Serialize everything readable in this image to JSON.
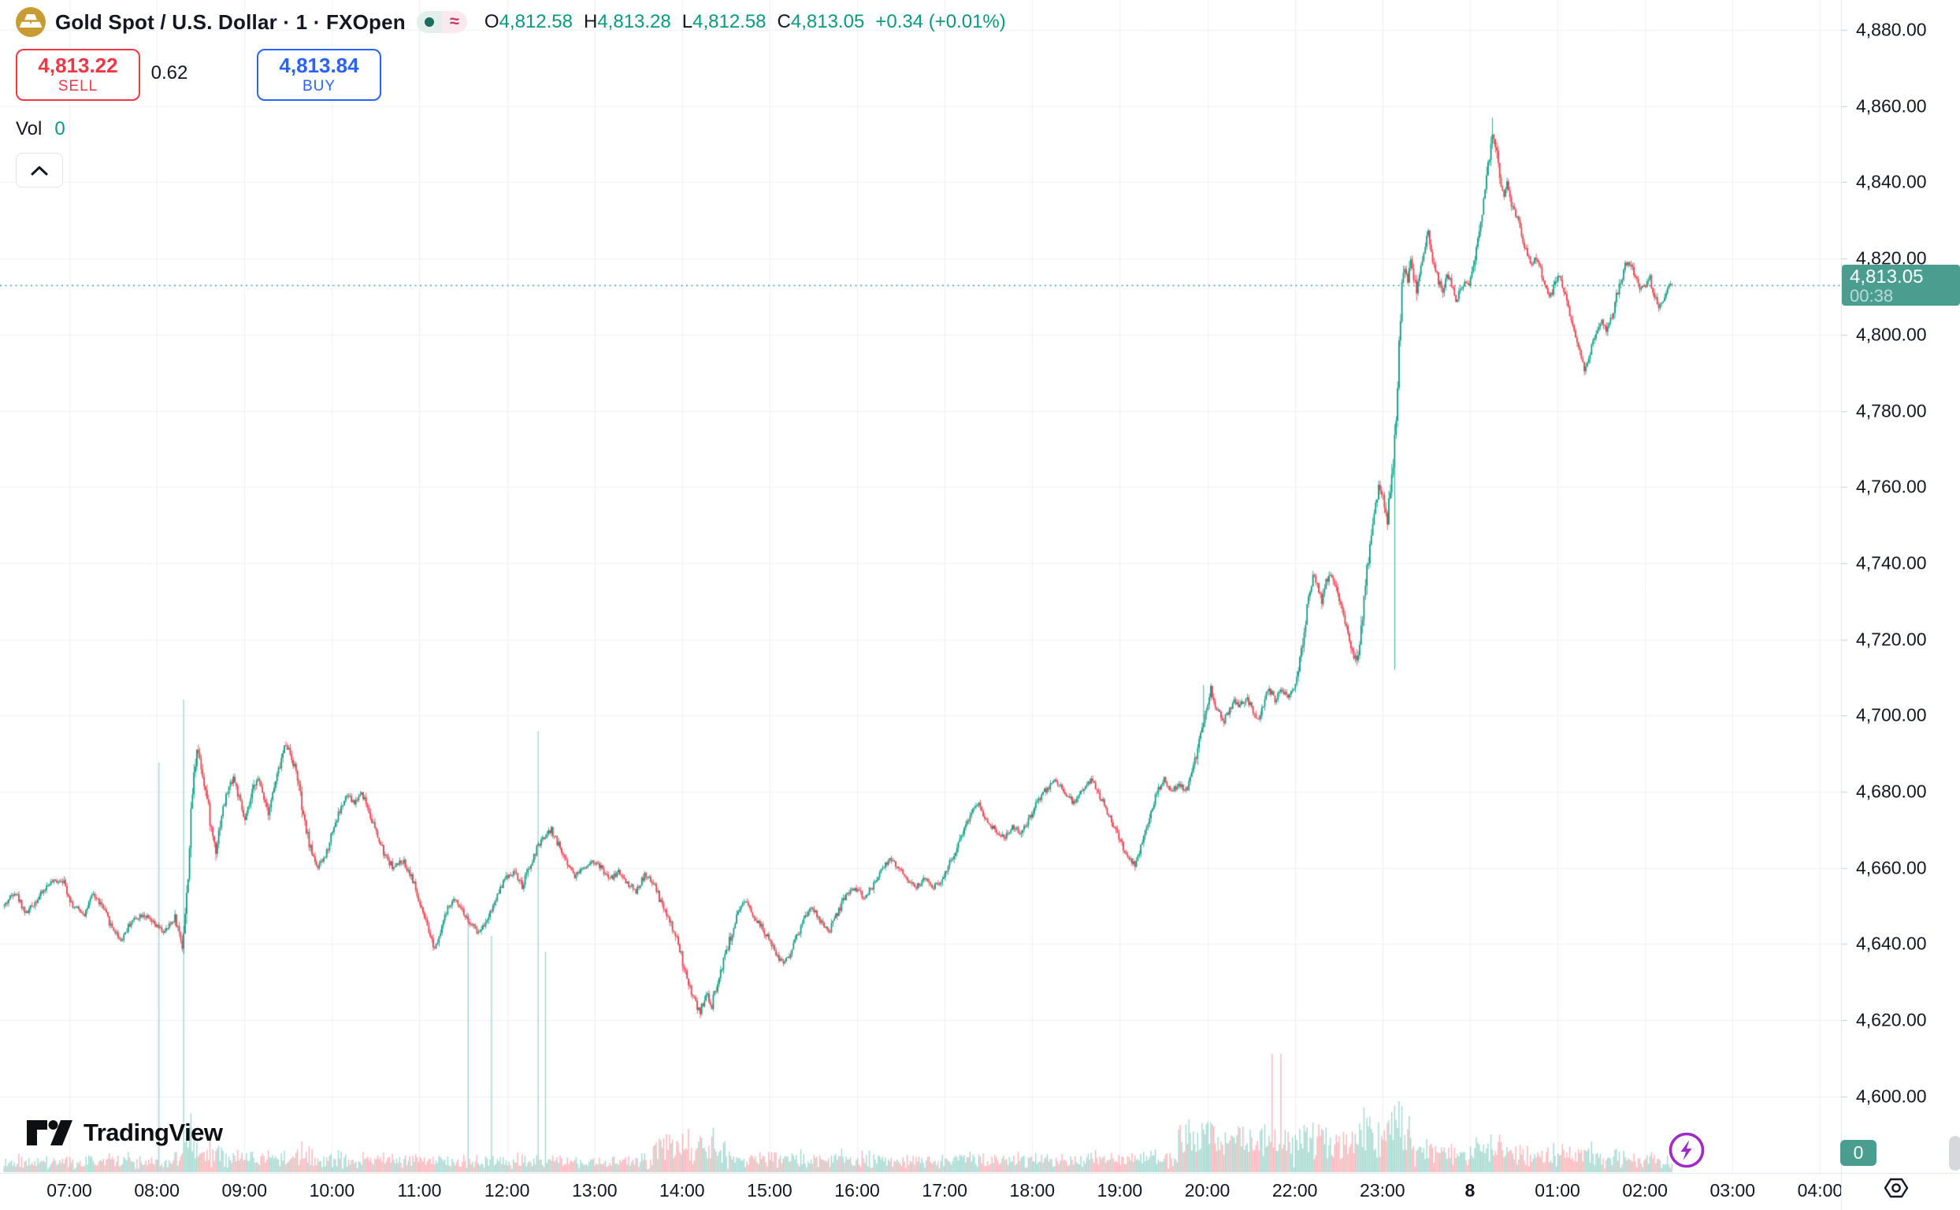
{
  "header": {
    "symbol_title": "Gold Spot / U.S. Dollar · 1 · FXOpen",
    "ohlc": {
      "o_label": "O",
      "o": "4,812.58",
      "h_label": "H",
      "h": "4,813.28",
      "l_label": "L",
      "l": "4,812.58",
      "c_label": "C",
      "c": "4,813.05",
      "change": "+0.34 (+0.01%)"
    },
    "sell_button": {
      "price": "4,813.22",
      "label": "SELL"
    },
    "spread": "0.62",
    "buy_button": {
      "price": "4,813.84",
      "label": "BUY"
    },
    "vol_label": "Vol",
    "vol_value": "0"
  },
  "price_label": {
    "value": "4,813.05",
    "countdown": "00:38"
  },
  "volume_badge": "0",
  "footer": {
    "logo_text": "TradingView"
  },
  "chart_data": {
    "type": "candlestick",
    "title": "Gold Spot / U.S. Dollar",
    "interval_minutes": 1,
    "provider": "FXOpen",
    "last": {
      "open": 4812.58,
      "high": 4813.28,
      "low": 4812.58,
      "close": 4813.05,
      "change": 0.34,
      "change_pct": 0.01
    },
    "price_axis": {
      "min": 4600,
      "max": 4880,
      "tick_step": 20,
      "tick_labels": [
        "4,880.00",
        "4,860.00",
        "4,840.00",
        "4,820.00",
        "4,800.00",
        "4,780.00",
        "4,760.00",
        "4,740.00",
        "4,720.00",
        "4,700.00",
        "4,680.00",
        "4,660.00",
        "4,640.00",
        "4,620.00",
        "4,600.00"
      ]
    },
    "time_axis": {
      "missing_hour": "21:00",
      "ticks": [
        {
          "t": "07:00",
          "label": "07:00"
        },
        {
          "t": "08:00",
          "label": "08:00"
        },
        {
          "t": "09:00",
          "label": "09:00"
        },
        {
          "t": "10:00",
          "label": "10:00"
        },
        {
          "t": "11:00",
          "label": "11:00"
        },
        {
          "t": "12:00",
          "label": "12:00"
        },
        {
          "t": "13:00",
          "label": "13:00"
        },
        {
          "t": "14:00",
          "label": "14:00"
        },
        {
          "t": "15:00",
          "label": "15:00"
        },
        {
          "t": "16:00",
          "label": "16:00"
        },
        {
          "t": "17:00",
          "label": "17:00"
        },
        {
          "t": "18:00",
          "label": "18:00"
        },
        {
          "t": "19:00",
          "label": "19:00"
        },
        {
          "t": "20:00",
          "label": "20:00"
        },
        {
          "t": "22:00",
          "label": "22:00"
        },
        {
          "t": "23:00",
          "label": "23:00"
        },
        {
          "t": "00:00",
          "label": "8",
          "bold": true
        },
        {
          "t": "01:00",
          "label": "01:00"
        },
        {
          "t": "02:00",
          "label": "02:00"
        },
        {
          "t": "03:00",
          "label": "03:00"
        },
        {
          "t": "04:00",
          "label": "04:00"
        }
      ]
    },
    "session": {
      "start": "06:15",
      "end": "02:18"
    },
    "price_line": 4813.05,
    "price_path": [
      [
        "06:15",
        4650
      ],
      [
        "06:22",
        4654
      ],
      [
        "06:30",
        4648
      ],
      [
        "06:38",
        4652
      ],
      [
        "06:46",
        4656
      ],
      [
        "06:55",
        4657
      ],
      [
        "07:02",
        4650
      ],
      [
        "07:10",
        4648
      ],
      [
        "07:16",
        4653
      ],
      [
        "07:22",
        4650
      ],
      [
        "07:28",
        4645
      ],
      [
        "07:35",
        4641
      ],
      [
        "07:42",
        4646
      ],
      [
        "07:50",
        4648
      ],
      [
        "07:58",
        4645
      ],
      [
        "08:05",
        4643
      ],
      [
        "08:12",
        4647
      ],
      [
        "08:17",
        4640
      ],
      [
        "08:20",
        4652
      ],
      [
        "08:24",
        4680
      ],
      [
        "08:27",
        4692
      ],
      [
        "08:30",
        4687
      ],
      [
        "08:34",
        4678
      ],
      [
        "08:37",
        4670
      ],
      [
        "08:40",
        4665
      ],
      [
        "08:44",
        4674
      ],
      [
        "08:48",
        4680
      ],
      [
        "08:52",
        4684
      ],
      [
        "08:56",
        4678
      ],
      [
        "09:00",
        4672
      ],
      [
        "09:04",
        4678
      ],
      [
        "09:08",
        4684
      ],
      [
        "09:12",
        4680
      ],
      [
        "09:16",
        4675
      ],
      [
        "09:20",
        4681
      ],
      [
        "09:24",
        4687
      ],
      [
        "09:28",
        4693
      ],
      [
        "09:32",
        4689
      ],
      [
        "09:36",
        4684
      ],
      [
        "09:40",
        4673
      ],
      [
        "09:45",
        4665
      ],
      [
        "09:50",
        4660
      ],
      [
        "09:55",
        4663
      ],
      [
        "10:00",
        4670
      ],
      [
        "10:05",
        4675
      ],
      [
        "10:10",
        4679
      ],
      [
        "10:15",
        4677
      ],
      [
        "10:20",
        4680
      ],
      [
        "10:25",
        4675
      ],
      [
        "10:30",
        4669
      ],
      [
        "10:36",
        4663
      ],
      [
        "10:42",
        4660
      ],
      [
        "10:48",
        4662
      ],
      [
        "10:54",
        4658
      ],
      [
        "11:00",
        4650
      ],
      [
        "11:05",
        4644
      ],
      [
        "11:10",
        4639
      ],
      [
        "11:15",
        4645
      ],
      [
        "11:20",
        4650
      ],
      [
        "11:25",
        4652
      ],
      [
        "11:30",
        4648
      ],
      [
        "11:35",
        4645
      ],
      [
        "11:40",
        4643
      ],
      [
        "11:45",
        4646
      ],
      [
        "11:50",
        4650
      ],
      [
        "11:55",
        4655
      ],
      [
        "12:00",
        4658
      ],
      [
        "12:05",
        4659
      ],
      [
        "12:10",
        4655
      ],
      [
        "12:15",
        4660
      ],
      [
        "12:20",
        4665
      ],
      [
        "12:25",
        4668
      ],
      [
        "12:30",
        4670
      ],
      [
        "12:35",
        4666
      ],
      [
        "12:40",
        4662
      ],
      [
        "12:46",
        4658
      ],
      [
        "12:52",
        4660
      ],
      [
        "12:58",
        4662
      ],
      [
        "13:04",
        4660
      ],
      [
        "13:10",
        4657
      ],
      [
        "13:16",
        4659
      ],
      [
        "13:22",
        4656
      ],
      [
        "13:28",
        4654
      ],
      [
        "13:34",
        4658
      ],
      [
        "13:40",
        4656
      ],
      [
        "13:46",
        4650
      ],
      [
        "13:52",
        4645
      ],
      [
        "13:57",
        4640
      ],
      [
        "14:02",
        4632
      ],
      [
        "14:07",
        4626
      ],
      [
        "14:12",
        4622
      ],
      [
        "14:16",
        4627
      ],
      [
        "14:20",
        4624
      ],
      [
        "14:24",
        4630
      ],
      [
        "14:28",
        4636
      ],
      [
        "14:33",
        4642
      ],
      [
        "14:38",
        4648
      ],
      [
        "14:43",
        4651
      ],
      [
        "14:48",
        4648
      ],
      [
        "14:53",
        4645
      ],
      [
        "14:58",
        4642
      ],
      [
        "15:03",
        4638
      ],
      [
        "15:08",
        4635
      ],
      [
        "15:13",
        4637
      ],
      [
        "15:18",
        4642
      ],
      [
        "15:23",
        4646
      ],
      [
        "15:28",
        4650
      ],
      [
        "15:34",
        4646
      ],
      [
        "15:40",
        4643
      ],
      [
        "15:46",
        4648
      ],
      [
        "15:52",
        4653
      ],
      [
        "15:58",
        4655
      ],
      [
        "16:04",
        4652
      ],
      [
        "16:10",
        4655
      ],
      [
        "16:16",
        4660
      ],
      [
        "16:22",
        4662
      ],
      [
        "16:28",
        4660
      ],
      [
        "16:34",
        4657
      ],
      [
        "16:40",
        4655
      ],
      [
        "16:46",
        4657
      ],
      [
        "16:52",
        4655
      ],
      [
        "16:58",
        4657
      ],
      [
        "17:04",
        4662
      ],
      [
        "17:10",
        4668
      ],
      [
        "17:16",
        4673
      ],
      [
        "17:22",
        4677
      ],
      [
        "17:28",
        4673
      ],
      [
        "17:34",
        4670
      ],
      [
        "17:40",
        4668
      ],
      [
        "17:46",
        4671
      ],
      [
        "17:52",
        4669
      ],
      [
        "17:58",
        4673
      ],
      [
        "18:04",
        4678
      ],
      [
        "18:10",
        4681
      ],
      [
        "18:16",
        4683
      ],
      [
        "18:22",
        4680
      ],
      [
        "18:28",
        4677
      ],
      [
        "18:34",
        4680
      ],
      [
        "18:40",
        4683
      ],
      [
        "18:46",
        4679
      ],
      [
        "18:52",
        4674
      ],
      [
        "18:58",
        4669
      ],
      [
        "19:04",
        4663
      ],
      [
        "19:10",
        4661
      ],
      [
        "19:15",
        4667
      ],
      [
        "19:20",
        4674
      ],
      [
        "19:25",
        4680
      ],
      [
        "19:30",
        4683
      ],
      [
        "19:35",
        4680
      ],
      [
        "19:40",
        4682
      ],
      [
        "19:45",
        4680
      ],
      [
        "19:50",
        4686
      ],
      [
        "19:54",
        4694
      ],
      [
        "19:58",
        4701
      ],
      [
        "20:02",
        4707
      ],
      [
        "20:06",
        4702
      ],
      [
        "20:10",
        4698
      ],
      [
        "20:14",
        4701
      ],
      [
        "20:18",
        4704
      ],
      [
        "20:22",
        4702
      ],
      [
        "20:26",
        4705
      ],
      [
        "20:30",
        4702
      ],
      [
        "20:34",
        4699
      ],
      [
        "20:38",
        4703
      ],
      [
        "20:42",
        4707
      ],
      [
        "20:46",
        4704
      ],
      [
        "20:50",
        4707
      ],
      [
        "20:55",
        4705
      ],
      [
        "20:59",
        4707
      ],
      [
        "22:00",
        4709
      ],
      [
        "22:03",
        4714
      ],
      [
        "22:06",
        4722
      ],
      [
        "22:09",
        4731
      ],
      [
        "22:12",
        4737
      ],
      [
        "22:15",
        4734
      ],
      [
        "22:18",
        4730
      ],
      [
        "22:21",
        4735
      ],
      [
        "22:24",
        4738
      ],
      [
        "22:27",
        4734
      ],
      [
        "22:30",
        4730
      ],
      [
        "22:33",
        4726
      ],
      [
        "22:36",
        4722
      ],
      [
        "22:39",
        4717
      ],
      [
        "22:42",
        4714
      ],
      [
        "22:45",
        4722
      ],
      [
        "22:48",
        4734
      ],
      [
        "22:51",
        4745
      ],
      [
        "22:54",
        4754
      ],
      [
        "22:57",
        4760
      ],
      [
        "23:00",
        4757
      ],
      [
        "23:03",
        4752
      ],
      [
        "23:06",
        4762
      ],
      [
        "23:09",
        4778
      ],
      [
        "23:11",
        4798
      ],
      [
        "23:13",
        4812
      ],
      [
        "23:15",
        4818
      ],
      [
        "23:17",
        4814
      ],
      [
        "23:19",
        4819
      ],
      [
        "23:21",
        4815
      ],
      [
        "23:23",
        4811
      ],
      [
        "23:25",
        4816
      ],
      [
        "23:27",
        4820
      ],
      [
        "23:29",
        4824
      ],
      [
        "23:31",
        4826
      ],
      [
        "23:33",
        4822
      ],
      [
        "23:35",
        4818
      ],
      [
        "23:38",
        4814
      ],
      [
        "23:41",
        4812
      ],
      [
        "23:44",
        4816
      ],
      [
        "23:47",
        4813
      ],
      [
        "23:50",
        4809
      ],
      [
        "23:53",
        4812
      ],
      [
        "23:56",
        4814
      ],
      [
        "23:59",
        4812
      ],
      [
        "00:02",
        4818
      ],
      [
        "00:05",
        4825
      ],
      [
        "00:08",
        4832
      ],
      [
        "00:11",
        4840
      ],
      [
        "00:13",
        4847
      ],
      [
        "00:15",
        4853
      ],
      [
        "00:17",
        4850
      ],
      [
        "00:19",
        4844
      ],
      [
        "00:21",
        4839
      ],
      [
        "00:23",
        4836
      ],
      [
        "00:25",
        4839
      ],
      [
        "00:27",
        4836
      ],
      [
        "00:30",
        4832
      ],
      [
        "00:33",
        4829
      ],
      [
        "00:36",
        4825
      ],
      [
        "00:39",
        4821
      ],
      [
        "00:42",
        4818
      ],
      [
        "00:45",
        4820
      ],
      [
        "00:48",
        4817
      ],
      [
        "00:51",
        4813
      ],
      [
        "00:54",
        4810
      ],
      [
        "00:57",
        4812
      ],
      [
        "01:00",
        4816
      ],
      [
        "01:03",
        4813
      ],
      [
        "01:06",
        4808
      ],
      [
        "01:09",
        4803
      ],
      [
        "01:12",
        4799
      ],
      [
        "01:15",
        4795
      ],
      [
        "01:18",
        4791
      ],
      [
        "01:21",
        4794
      ],
      [
        "01:24",
        4798
      ],
      [
        "01:27",
        4801
      ],
      [
        "01:30",
        4804
      ],
      [
        "01:33",
        4801
      ],
      [
        "01:36",
        4804
      ],
      [
        "01:39",
        4808
      ],
      [
        "01:42",
        4813
      ],
      [
        "01:45",
        4817
      ],
      [
        "01:48",
        4820
      ],
      [
        "01:51",
        4817
      ],
      [
        "01:54",
        4814
      ],
      [
        "01:57",
        4812
      ],
      [
        "02:00",
        4813
      ],
      [
        "02:03",
        4815
      ],
      [
        "02:06",
        4810
      ],
      [
        "02:09",
        4807
      ],
      [
        "02:12",
        4809
      ],
      [
        "02:15",
        4812
      ],
      [
        "02:18",
        4813.05
      ]
    ],
    "wick_extremes": [
      [
        "23:08",
        "low",
        4712
      ],
      [
        "00:15",
        "high",
        4857
      ],
      [
        "19:57",
        "high",
        4708
      ],
      [
        "14:12",
        "low",
        4620.5
      ]
    ],
    "volume_levels": [
      [
        "06:15",
        "13:40",
        9
      ],
      [
        "13:40",
        "14:30",
        24
      ],
      [
        "14:30",
        "19:40",
        11
      ],
      [
        "19:40",
        "20:59",
        34
      ],
      [
        "22:00",
        "23:20",
        30
      ],
      [
        "23:20",
        "01:30",
        15
      ],
      [
        "01:30",
        "02:18",
        9
      ]
    ],
    "volume_spikes": [
      [
        "08:01",
        520,
        "up"
      ],
      [
        "08:18",
        600,
        "up"
      ],
      [
        "11:33",
        330,
        "up"
      ],
      [
        "11:49",
        300,
        "up"
      ],
      [
        "12:21",
        560,
        "up"
      ],
      [
        "12:26",
        280,
        "up"
      ],
      [
        "14:04",
        55,
        "down"
      ],
      [
        "20:44",
        150,
        "down"
      ],
      [
        "20:50",
        150,
        "down"
      ],
      [
        "22:06",
        60,
        "up"
      ],
      [
        "22:50",
        58,
        "up"
      ],
      [
        "23:10",
        56,
        "up"
      ],
      [
        "00:14",
        48,
        "up"
      ]
    ],
    "colors": {
      "up": "#089981",
      "down": "#f23645",
      "volume_up": "rgba(8,153,129,0.38)",
      "volume_down": "rgba(242,54,69,0.38)",
      "price_line": "#2f9d8b",
      "grid": "#f0f1f5",
      "axis_border": "#e0e3eb",
      "axis_tick": "#c9cdd6"
    },
    "grid": true,
    "legend_position": "top-left"
  }
}
